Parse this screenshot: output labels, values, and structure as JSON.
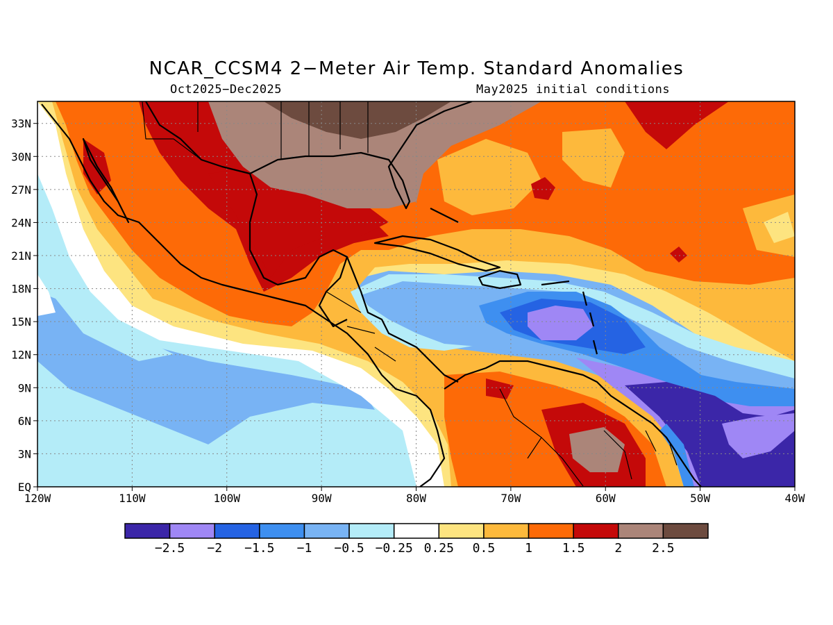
{
  "title": "NCAR_CCSM4 2−Meter Air Temp. Standard Anomalies",
  "subtitle_left": "Oct2025−Dec2025",
  "subtitle_right": "May2025 initial conditions",
  "map": {
    "lon_range": [
      -120,
      -40
    ],
    "lat_range": [
      0,
      35
    ],
    "lon_ticks": [
      {
        "value": -120,
        "label": "120W"
      },
      {
        "value": -110,
        "label": "110W"
      },
      {
        "value": -100,
        "label": "100W"
      },
      {
        "value": -90,
        "label": "90W"
      },
      {
        "value": -80,
        "label": "80W"
      },
      {
        "value": -70,
        "label": "70W"
      },
      {
        "value": -60,
        "label": "60W"
      },
      {
        "value": -50,
        "label": "50W"
      },
      {
        "value": -40,
        "label": "40W"
      }
    ],
    "lat_ticks": [
      {
        "value": 0,
        "label": "EQ"
      },
      {
        "value": 3,
        "label": "3N"
      },
      {
        "value": 6,
        "label": "6N"
      },
      {
        "value": 9,
        "label": "9N"
      },
      {
        "value": 12,
        "label": "12N"
      },
      {
        "value": 15,
        "label": "15N"
      },
      {
        "value": 18,
        "label": "18N"
      },
      {
        "value": 21,
        "label": "21N"
      },
      {
        "value": 24,
        "label": "24N"
      },
      {
        "value": 27,
        "label": "27N"
      },
      {
        "value": 30,
        "label": "30N"
      },
      {
        "value": 33,
        "label": "33N"
      }
    ],
    "grid": true
  },
  "colorbar": {
    "colors": [
      "#3b26a8",
      "#9f87f5",
      "#2563e3",
      "#3e8ff0",
      "#78b3f4",
      "#b4ecf8",
      "#ffffff",
      "#fde480",
      "#fdb93c",
      "#fd6a07",
      "#c40909",
      "#ab8579",
      "#6d4b3f"
    ],
    "labels": [
      "−2.5",
      "−2",
      "−1.5",
      "−1",
      "−0.5",
      "−0.25",
      "0.25",
      "0.5",
      "1",
      "1.5",
      "2",
      "2.5"
    ]
  }
}
